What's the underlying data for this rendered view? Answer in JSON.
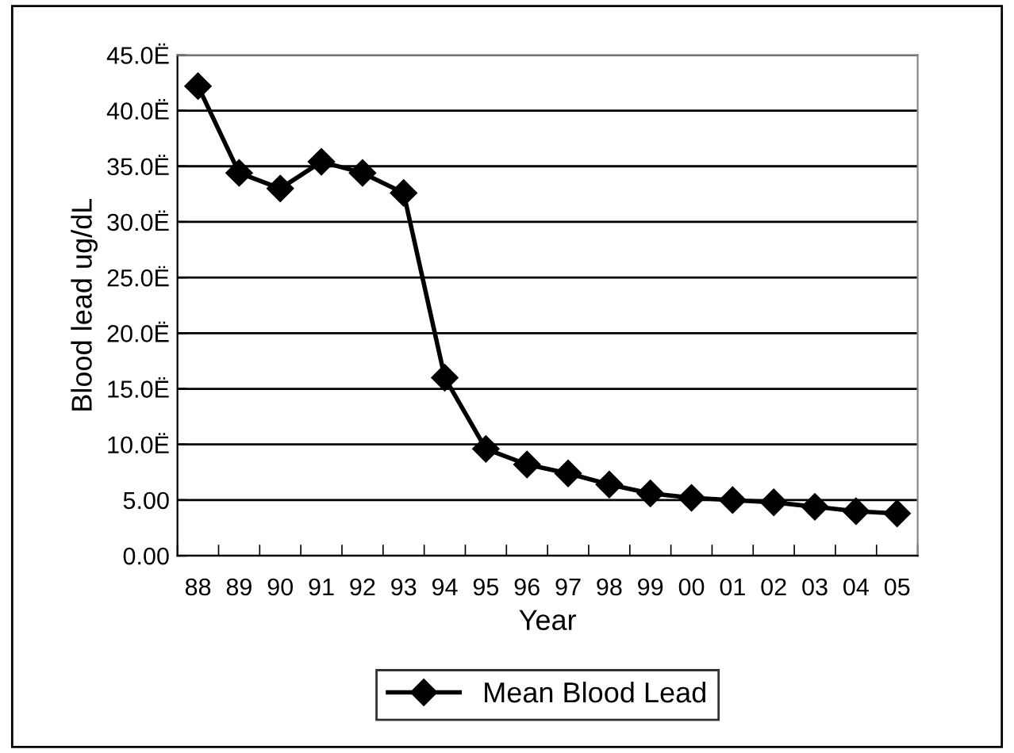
{
  "chart_data": {
    "type": "line",
    "xlabel": "Year",
    "ylabel": "Blood lead ug/dL",
    "categories": [
      "88",
      "89",
      "90",
      "91",
      "92",
      "93",
      "94",
      "95",
      "96",
      "97",
      "98",
      "99",
      "00",
      "01",
      "02",
      "03",
      "04",
      "05"
    ],
    "series": [
      {
        "name": "Mean Blood Lead",
        "color": "#000000",
        "values": [
          42.2,
          34.4,
          33.0,
          35.4,
          34.4,
          32.6,
          16.0,
          9.6,
          8.2,
          7.4,
          6.4,
          5.6,
          5.2,
          5.0,
          4.8,
          4.4,
          4.0,
          3.8
        ]
      }
    ],
    "ylim": [
      0,
      45
    ],
    "yticks": [
      {
        "value": 0,
        "label": "0.00"
      },
      {
        "value": 5,
        "label": "5.00"
      },
      {
        "value": 10,
        "label": "10.0Ë"
      },
      {
        "value": 15,
        "label": "15.0Ë"
      },
      {
        "value": 20,
        "label": "20.0Ë"
      },
      {
        "value": 25,
        "label": "25.0Ë"
      },
      {
        "value": 30,
        "label": "30.0Ë"
      },
      {
        "value": 35,
        "label": "35.0Ë"
      },
      {
        "value": 40,
        "label": "40.0Ë"
      },
      {
        "value": 45,
        "label": "45.0Ë"
      }
    ],
    "grid": "y",
    "legend": "bottom",
    "marker": "diamond",
    "line_style": "solid"
  }
}
